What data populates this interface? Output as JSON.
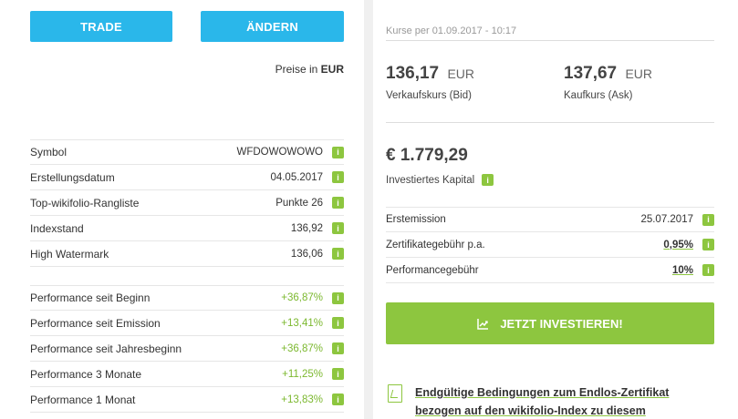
{
  "left": {
    "trade_label": "TRADE",
    "change_label": "ÄNDERN",
    "prices_in_label": "Preise in",
    "currency": "EUR",
    "info_rows": [
      {
        "label": "Symbol",
        "value": "WFDOWOWOWO"
      },
      {
        "label": "Erstellungsdatum",
        "value": "04.05.2017"
      },
      {
        "label": "Top-wikifolio-Rangliste",
        "value": "Punkte 26"
      },
      {
        "label": "Indexstand",
        "value": "136,92"
      },
      {
        "label": "High Watermark",
        "value": "136,06"
      }
    ],
    "performance_rows": [
      {
        "label": "Performance seit Beginn",
        "value": "+36,87%"
      },
      {
        "label": "Performance seit Emission",
        "value": "+13,41%"
      },
      {
        "label": "Performance seit Jahresbeginn",
        "value": "+36,87%"
      },
      {
        "label": "Performance 3 Monate",
        "value": "+11,25%"
      },
      {
        "label": "Performance 1 Monat",
        "value": "+13,83%"
      }
    ],
    "info_icon_glyph": "i"
  },
  "right": {
    "kurse_line": "Kurse per 01.09.2017 - 10:17",
    "bid_value": "136,17",
    "bid_currency": "EUR",
    "bid_label": "Verkaufskurs (Bid)",
    "ask_value": "137,67",
    "ask_currency": "EUR",
    "ask_label": "Kaufkurs (Ask)",
    "capital_value": "€ 1.779,29",
    "capital_label": "Investiertes Kapital",
    "detail_rows": [
      {
        "label": "Erstemission",
        "value": "25.07.2017"
      },
      {
        "label": "Zertifikategebühr p.a.",
        "value": "0,95%"
      },
      {
        "label": "Performancegebühr",
        "value": "10%"
      }
    ],
    "invest_label": "JETZT INVESTIEREN!",
    "doc_link": "Endgültige Bedingungen zum Endlos-Zertifikat bezogen auf den wikifolio-Index zu diesem"
  },
  "colors": {
    "accent_blue": "#2ab7ea",
    "accent_green": "#8dc63f",
    "positive_green": "#7cb82f"
  },
  "icons": {
    "info": "info-icon",
    "chart": "chart-up-icon",
    "pdf": "pdf-document-icon"
  }
}
